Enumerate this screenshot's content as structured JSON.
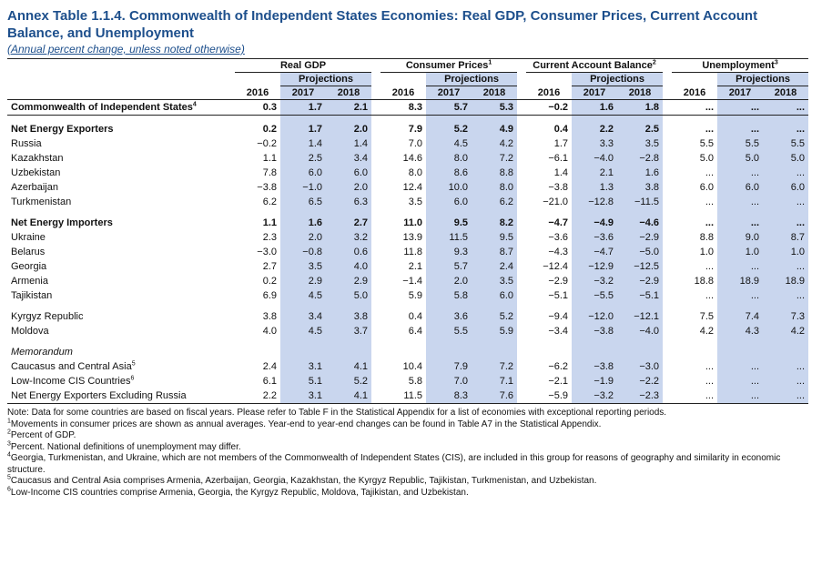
{
  "header": {
    "title": "Annex Table 1.1.4. Commonwealth of Independent States Economies: Real GDP, Consumer Prices, Current Account Balance, and Unemployment",
    "subtitle": "(Annual percent change, unless noted otherwise)"
  },
  "table": {
    "groups": [
      {
        "name": "Real GDP",
        "projections": "Projections",
        "years": [
          "2016",
          "2017",
          "2018"
        ]
      },
      {
        "name": "Consumer Prices",
        "note": "1",
        "projections": "Projections",
        "years": [
          "2016",
          "2017",
          "2018"
        ]
      },
      {
        "name": "Current Account Balance",
        "note": "2",
        "projections": "Projections",
        "years": [
          "2016",
          "2017",
          "2018"
        ]
      },
      {
        "name": "Unemployment",
        "note": "3",
        "projections": "Projections",
        "years": [
          "2016",
          "2017",
          "2018"
        ]
      }
    ],
    "rows": [
      {
        "label": "Commonwealth of Independent States",
        "note": "4",
        "bold": true,
        "values": [
          "0.3",
          "1.7",
          "2.1",
          "8.3",
          "5.7",
          "5.3",
          "−0.2",
          "1.6",
          "1.8",
          "...",
          "...",
          "..."
        ]
      },
      {
        "label": "Net Energy Exporters",
        "bold": true,
        "values": [
          "0.2",
          "1.7",
          "2.0",
          "7.9",
          "5.2",
          "4.9",
          "0.4",
          "2.2",
          "2.5",
          "...",
          "...",
          "..."
        ]
      },
      {
        "label": "Russia",
        "values": [
          "−0.2",
          "1.4",
          "1.4",
          "7.0",
          "4.5",
          "4.2",
          "1.7",
          "3.3",
          "3.5",
          "5.5",
          "5.5",
          "5.5"
        ]
      },
      {
        "label": "Kazakhstan",
        "values": [
          "1.1",
          "2.5",
          "3.4",
          "14.6",
          "8.0",
          "7.2",
          "−6.1",
          "−4.0",
          "−2.8",
          "5.0",
          "5.0",
          "5.0"
        ]
      },
      {
        "label": "Uzbekistan",
        "values": [
          "7.8",
          "6.0",
          "6.0",
          "8.0",
          "8.6",
          "8.8",
          "1.4",
          "2.1",
          "1.6",
          "...",
          "...",
          "..."
        ]
      },
      {
        "label": "Azerbaijan",
        "values": [
          "−3.8",
          "−1.0",
          "2.0",
          "12.4",
          "10.0",
          "8.0",
          "−3.8",
          "1.3",
          "3.8",
          "6.0",
          "6.0",
          "6.0"
        ]
      },
      {
        "label": "Turkmenistan",
        "values": [
          "6.2",
          "6.5",
          "6.3",
          "3.5",
          "6.0",
          "6.2",
          "−21.0",
          "−12.8",
          "−11.5",
          "...",
          "...",
          "..."
        ]
      },
      {
        "label": "Net Energy Importers",
        "bold": true,
        "values": [
          "1.1",
          "1.6",
          "2.7",
          "11.0",
          "9.5",
          "8.2",
          "−4.7",
          "−4.9",
          "−4.6",
          "...",
          "...",
          "..."
        ]
      },
      {
        "label": "Ukraine",
        "values": [
          "2.3",
          "2.0",
          "3.2",
          "13.9",
          "11.5",
          "9.5",
          "−3.6",
          "−3.6",
          "−2.9",
          "8.8",
          "9.0",
          "8.7"
        ]
      },
      {
        "label": "Belarus",
        "values": [
          "−3.0",
          "−0.8",
          "0.6",
          "11.8",
          "9.3",
          "8.7",
          "−4.3",
          "−4.7",
          "−5.0",
          "1.0",
          "1.0",
          "1.0"
        ]
      },
      {
        "label": "Georgia",
        "values": [
          "2.7",
          "3.5",
          "4.0",
          "2.1",
          "5.7",
          "2.4",
          "−12.4",
          "−12.9",
          "−12.5",
          "...",
          "...",
          "..."
        ]
      },
      {
        "label": "Armenia",
        "values": [
          "0.2",
          "2.9",
          "2.9",
          "−1.4",
          "2.0",
          "3.5",
          "−2.9",
          "−3.2",
          "−2.9",
          "18.8",
          "18.9",
          "18.9"
        ]
      },
      {
        "label": "Tajikistan",
        "values": [
          "6.9",
          "4.5",
          "5.0",
          "5.9",
          "5.8",
          "6.0",
          "−5.1",
          "−5.5",
          "−5.1",
          "...",
          "...",
          "..."
        ]
      },
      {
        "label": "Kyrgyz Republic",
        "values": [
          "3.8",
          "3.4",
          "3.8",
          "0.4",
          "3.6",
          "5.2",
          "−9.4",
          "−12.0",
          "−12.1",
          "7.5",
          "7.4",
          "7.3"
        ]
      },
      {
        "label": "Moldova",
        "values": [
          "4.0",
          "4.5",
          "3.7",
          "6.4",
          "5.5",
          "5.9",
          "−3.4",
          "−3.8",
          "−4.0",
          "4.2",
          "4.3",
          "4.2"
        ]
      },
      {
        "label": "Memorandum"
      },
      {
        "label": "Caucasus and Central Asia",
        "note": "5",
        "values": [
          "2.4",
          "3.1",
          "4.1",
          "10.4",
          "7.9",
          "7.2",
          "−6.2",
          "−3.8",
          "−3.0",
          "...",
          "...",
          "..."
        ]
      },
      {
        "label": "Low-Income CIS Countries",
        "note": "6",
        "values": [
          "6.1",
          "5.1",
          "5.2",
          "5.8",
          "7.0",
          "7.1",
          "−2.1",
          "−1.9",
          "−2.2",
          "...",
          "...",
          "..."
        ]
      },
      {
        "label": "Net Energy Exporters Excluding Russia",
        "values": [
          "2.2",
          "3.1",
          "4.1",
          "11.5",
          "8.3",
          "7.6",
          "−5.9",
          "−3.2",
          "−2.3",
          "...",
          "...",
          "..."
        ]
      }
    ]
  },
  "notes": [
    {
      "text": "Note: Data for some countries are based on fiscal years. Please refer to Table F in the Statistical Appendix for a list of economies with exceptional reporting periods."
    },
    {
      "mark": "1",
      "text": "Movements in consumer prices are shown as annual averages. Year-end to year-end changes can be found in Table A7 in the Statistical Appendix."
    },
    {
      "mark": "2",
      "text": "Percent of GDP."
    },
    {
      "mark": "3",
      "text": "Percent. National definitions of unemployment may differ."
    },
    {
      "mark": "4",
      "text": "Georgia, Turkmenistan, and Ukraine, which are not members of the Commonwealth of Independent States (CIS), are included in this group for reasons of geography and similarity in economic structure."
    },
    {
      "mark": "5",
      "text": "Caucasus and Central Asia comprises Armenia, Azerbaijan, Georgia, Kazakhstan, the Kyrgyz Republic, Tajikistan, Turkmenistan, and Uzbekistan."
    },
    {
      "mark": "6",
      "text": "Low-Income CIS countries comprise Armenia, Georgia, the Kyrgyz Republic, Moldova, Tajikistan, and Uzbekistan."
    }
  ]
}
